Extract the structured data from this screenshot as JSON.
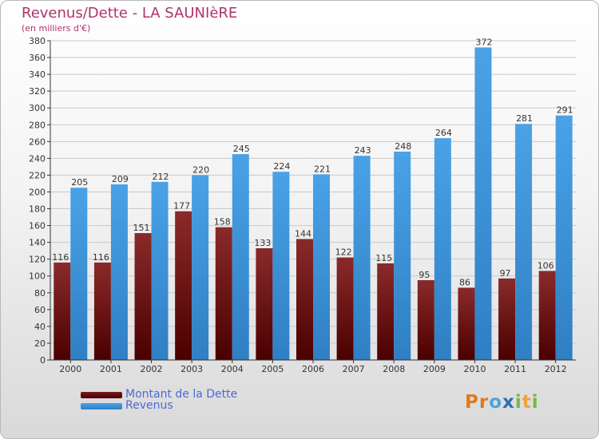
{
  "title": "Revenus/Dette - LA SAUNIèRE",
  "subtitle": "(en milliers d'€)",
  "logo": {
    "text": "Proxiti",
    "letters": [
      "P",
      "r",
      "o",
      "x",
      "i",
      "t",
      "i"
    ],
    "colors": [
      "#e07a1f",
      "#e07a1f",
      "#4ea3d8",
      "#2a6fb8",
      "#7ab648",
      "#f0a23a",
      "#7ab648"
    ]
  },
  "chart_data": {
    "type": "bar",
    "categories": [
      "2000",
      "2001",
      "2002",
      "2003",
      "2004",
      "2005",
      "2006",
      "2007",
      "2008",
      "2009",
      "2010",
      "2011",
      "2012"
    ],
    "series": [
      {
        "name": "Montant de la Dette",
        "color": "#6e0a0a",
        "values": [
          116,
          116,
          151,
          177,
          158,
          133,
          144,
          122,
          115,
          95,
          86,
          97,
          106
        ]
      },
      {
        "name": "Revenus",
        "color": "#3f97dd",
        "values": [
          205,
          209,
          212,
          220,
          245,
          224,
          221,
          243,
          248,
          264,
          372,
          281,
          291
        ]
      }
    ],
    "ylim": [
      0,
      380
    ],
    "yticks": [
      0,
      20,
      40,
      60,
      80,
      100,
      120,
      140,
      160,
      180,
      200,
      220,
      240,
      260,
      280,
      300,
      320,
      340,
      360,
      380
    ],
    "grid": true,
    "legend": "bottom-left"
  }
}
